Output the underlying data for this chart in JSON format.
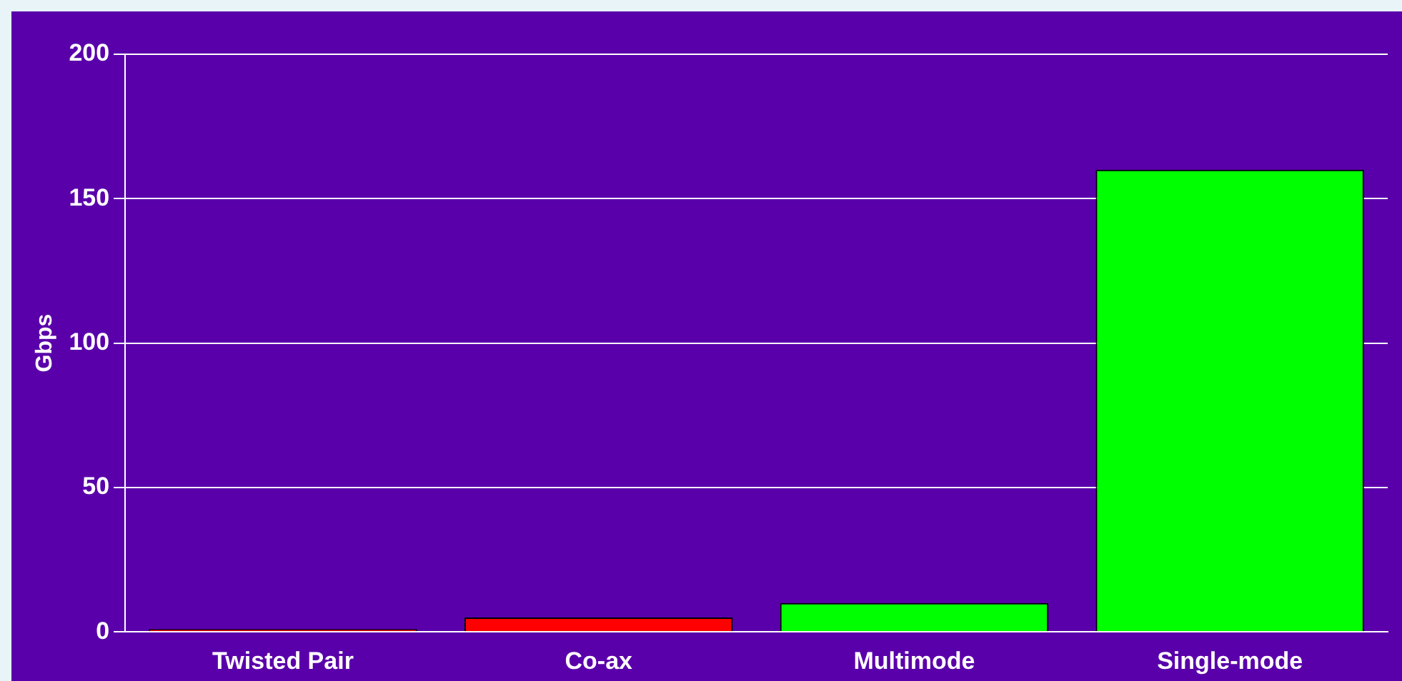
{
  "chart_data": {
    "type": "bar",
    "ylabel": "Gbps",
    "categories": [
      "Twisted Pair",
      "Co-ax",
      "Multimode",
      "Single-mode"
    ],
    "values": [
      1,
      5,
      10,
      160
    ],
    "colors": [
      "#ff0000",
      "#ff0000",
      "#00ff00",
      "#00ff00"
    ],
    "ylim": [
      0,
      200
    ],
    "yticks": [
      0,
      50,
      100,
      150,
      200
    ],
    "grid": "y",
    "legend": false
  }
}
